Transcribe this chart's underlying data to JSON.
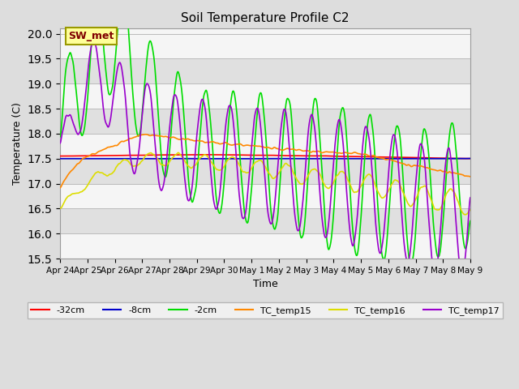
{
  "title": "Soil Temperature Profile C2",
  "xlabel": "Time",
  "ylabel": "Temperature (C)",
  "ylim": [
    15.5,
    20.1
  ],
  "yticks": [
    15.5,
    16.0,
    16.5,
    17.0,
    17.5,
    18.0,
    18.5,
    19.0,
    19.5,
    20.0
  ],
  "bg_color": "#dddddd",
  "plot_bg_alt1": "#f5f5f5",
  "plot_bg_alt2": "#e0e0e0",
  "annotation_box_facecolor": "#ffff99",
  "annotation_box_edgecolor": "#999900",
  "annotation_text_color": "#800000",
  "annotation_text": "SW_met",
  "series_colors": {
    "-32cm": "#ff0000",
    "-8cm": "#0000cc",
    "-2cm": "#00dd00",
    "TC_temp15": "#ff8800",
    "TC_temp16": "#dddd00",
    "TC_temp17": "#9900cc"
  },
  "xtick_labels": [
    "Apr 24",
    "Apr 25",
    "Apr 26",
    "Apr 27",
    "Apr 28",
    "Apr 29",
    "Apr 30",
    "May 1",
    "May 2",
    "May 3",
    "May 4",
    "May 5",
    "May 6",
    "May 7",
    "May 8",
    "May 9"
  ],
  "legend_labels": [
    "-32cm",
    "-8cm",
    "-2cm",
    "TC_temp15",
    "TC_temp16",
    "TC_temp17"
  ]
}
